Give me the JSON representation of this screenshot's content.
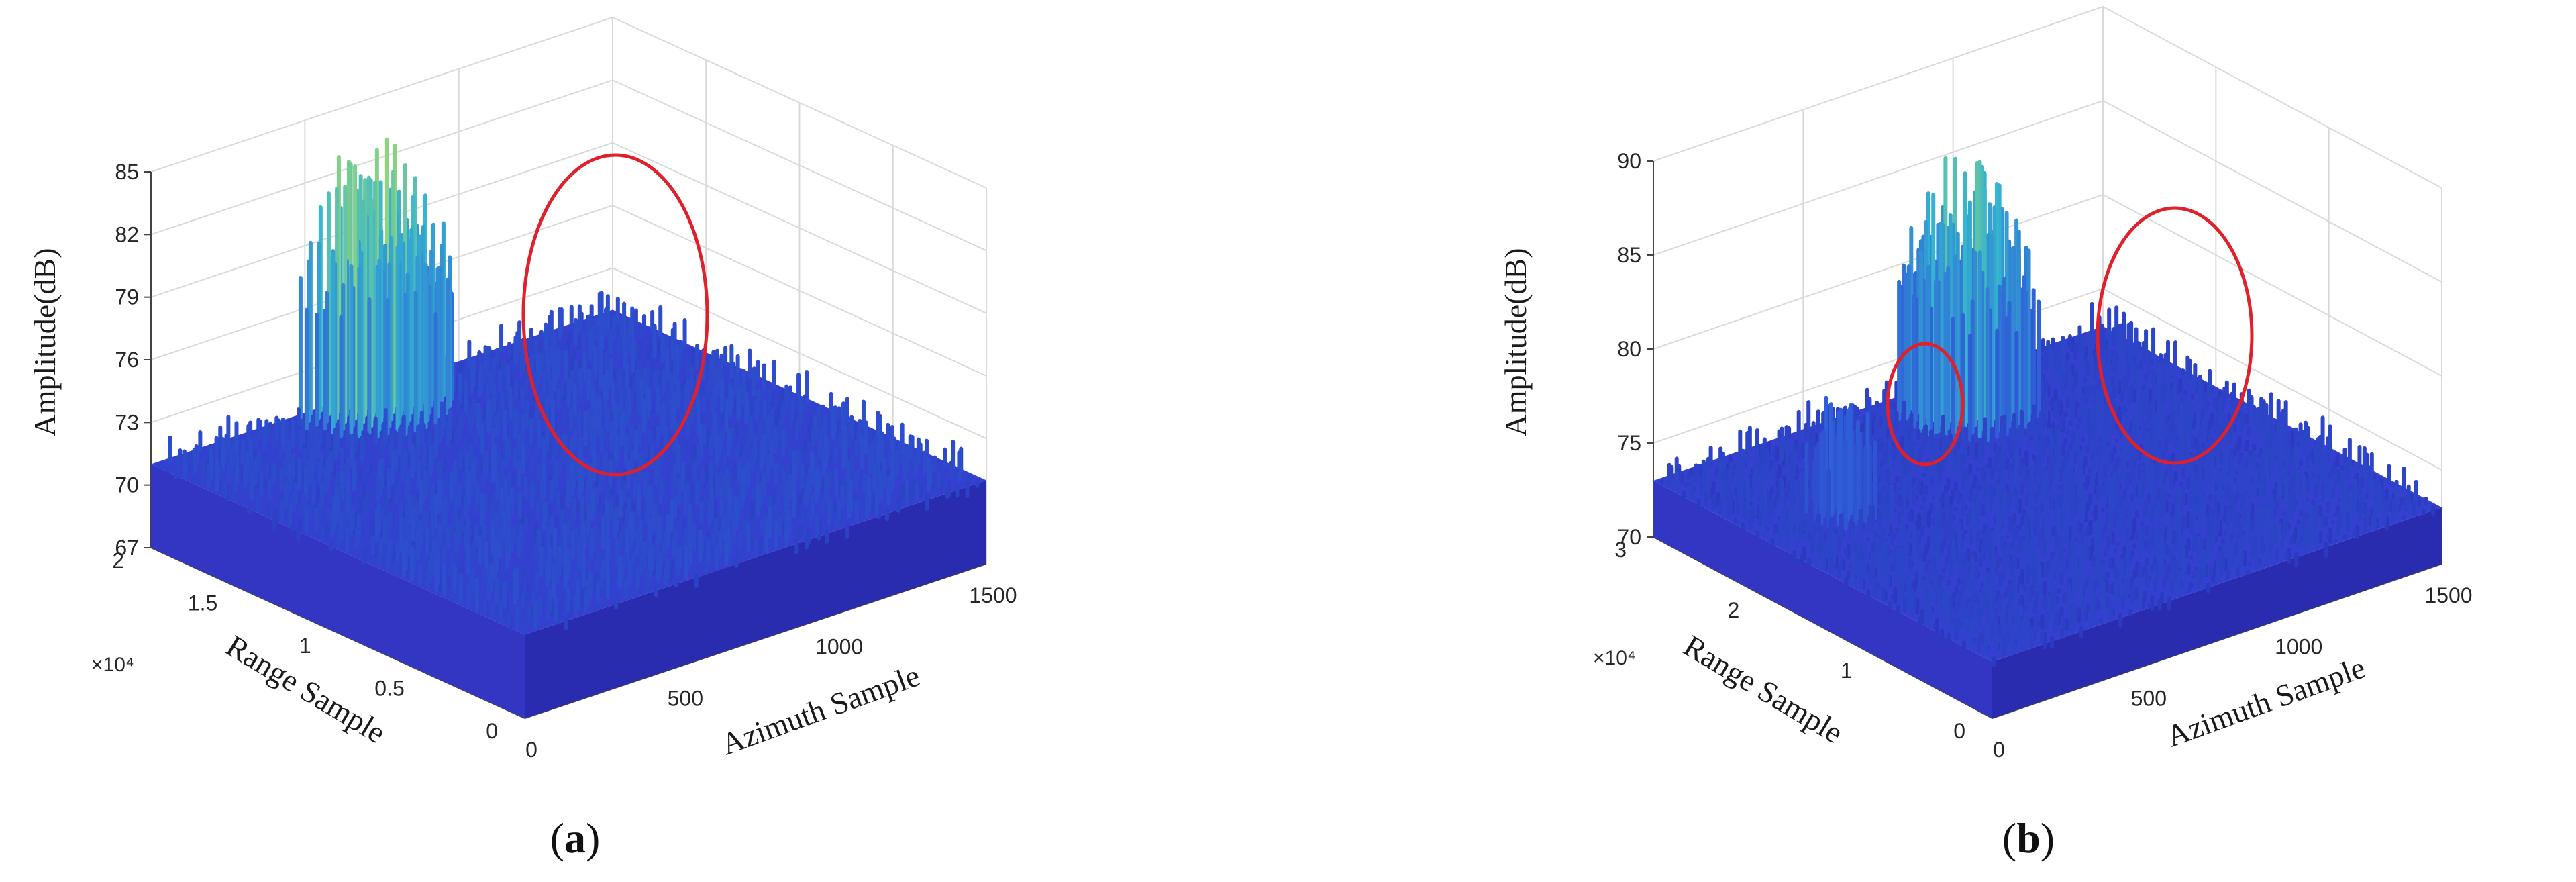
{
  "chart_data": [
    {
      "type": "surface",
      "caption_label": "a",
      "xlabel": "Azimuth Sample",
      "ylabel": "Range Sample",
      "zlabel": "Amplitude(dB)",
      "xlim": [
        0,
        1500
      ],
      "xticks": [
        "0",
        "500",
        "1000",
        "1500"
      ],
      "yticks": [
        "0",
        "0.5",
        "1",
        "1.5",
        "2"
      ],
      "y_exponent": "×10⁴",
      "ylim": [
        0,
        20000
      ],
      "zlim": [
        67,
        85
      ],
      "zticks": [
        "67",
        "70",
        "73",
        "76",
        "79",
        "82",
        "85"
      ],
      "background_level_db": 71,
      "peaks": [
        {
          "azimuth_sample": 650,
          "range_sample": 19000,
          "peak_db": 84,
          "highlighted": true
        }
      ]
    },
    {
      "type": "surface",
      "caption_label": "b",
      "xlabel": "Azimuth Sample",
      "ylabel": "Range Sample",
      "zlabel": "Amplitude(dB)",
      "xlim": [
        0,
        1500
      ],
      "xticks": [
        "0",
        "500",
        "1000",
        "1500"
      ],
      "yticks": [
        "0",
        "1",
        "2",
        "3"
      ],
      "y_exponent": "×10⁴",
      "ylim": [
        0,
        30000
      ],
      "zlim": [
        70,
        90
      ],
      "zticks": [
        "70",
        "75",
        "80",
        "85",
        "90"
      ],
      "background_level_db": 73,
      "peaks": [
        {
          "azimuth_sample": 250,
          "range_sample": 20000,
          "peak_db": 80,
          "highlighted": true
        },
        {
          "azimuth_sample": 900,
          "range_sample": 26000,
          "peak_db": 87,
          "highlighted": true
        }
      ]
    }
  ],
  "colors": {
    "surface_low": "#2c2fbf",
    "surface_mid": "#2f6fe0",
    "surface_high": "#35c7c0",
    "surface_top": "#b8e35a",
    "highlight_ring": "#e0202a",
    "grid": "#d9d9d9"
  }
}
